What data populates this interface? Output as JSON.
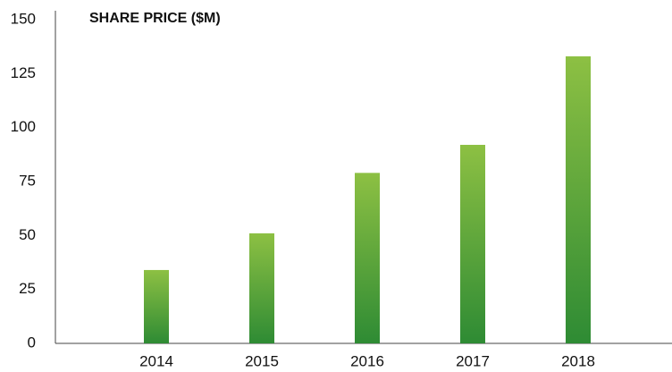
{
  "chart_data": {
    "type": "bar",
    "title": "SHARE PRICE ($M)",
    "categories": [
      "2014",
      "2015",
      "2016",
      "2017",
      "2018"
    ],
    "values": [
      34,
      51,
      79,
      92,
      133
    ],
    "gradient": [
      "#8dc043",
      "#2e8b34"
    ],
    "ylim": [
      0,
      150
    ],
    "yticks": [
      0,
      25,
      50,
      75,
      100,
      125,
      150
    ],
    "grid": false
  }
}
